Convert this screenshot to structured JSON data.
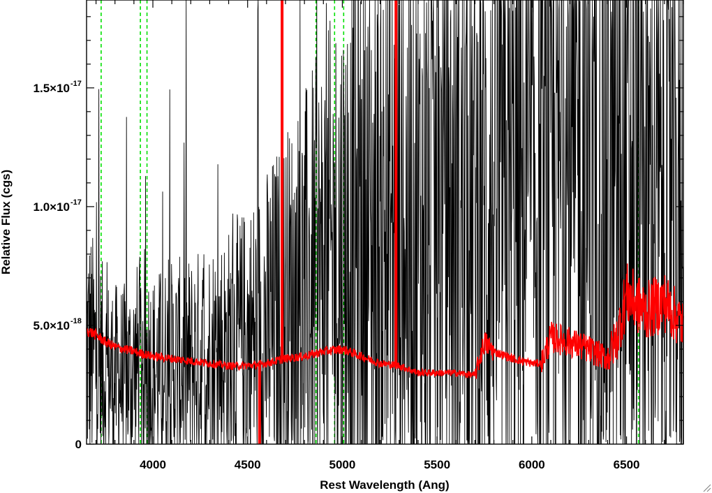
{
  "chart_data": {
    "type": "line",
    "title": "",
    "xlabel": "Rest Wavelength (Ang)",
    "ylabel": "Relative Flux (cgs)",
    "xlim": [
      3650,
      6800
    ],
    "ylim": [
      0,
      1.87e-17
    ],
    "x_ticks": [
      {
        "value": 4000,
        "label": "4000"
      },
      {
        "value": 4500,
        "label": "4500"
      },
      {
        "value": 5000,
        "label": "5000"
      },
      {
        "value": 5500,
        "label": "5500"
      },
      {
        "value": 6000,
        "label": "6000"
      },
      {
        "value": 6500,
        "label": "6500"
      }
    ],
    "y_ticks": [
      {
        "value": 0,
        "mantissa": "0",
        "exponent": ""
      },
      {
        "value": 5e-18,
        "mantissa": "5.0×10",
        "exponent": "-18"
      },
      {
        "value": 1e-17,
        "mantissa": "1.0×10",
        "exponent": "-17"
      },
      {
        "value": 1.5e-17,
        "mantissa": "1.5×10",
        "exponent": "-17"
      }
    ],
    "x_minor_step": 100,
    "y_minor_step": 1e-18,
    "grid": false,
    "legend": "none",
    "line_markers": [
      3727,
      3934,
      3969,
      4861,
      4959,
      5007,
      6563
    ],
    "series": [
      {
        "role": "observed spectrum",
        "color": "#000000",
        "points": [
          [
            3650,
            4e-18
          ],
          [
            3700,
            3.5e-18
          ],
          [
            3750,
            3e-18
          ],
          [
            3800,
            2.8e-18
          ],
          [
            3850,
            2.8e-18
          ],
          [
            3900,
            3e-18
          ],
          [
            3950,
            3.5e-18
          ],
          [
            4000,
            3e-18
          ],
          [
            4100,
            3.2e-18
          ],
          [
            4200,
            3.3e-18
          ],
          [
            4300,
            3.6e-18
          ],
          [
            4400,
            3.8e-18
          ],
          [
            4500,
            4.2e-18
          ],
          [
            4600,
            4.8e-18
          ],
          [
            4700,
            5.5e-18
          ],
          [
            4800,
            6.2e-18
          ],
          [
            4900,
            7e-18
          ],
          [
            5000,
            8e-18
          ],
          [
            5100,
            8.4e-18
          ],
          [
            5200,
            8.6e-18
          ],
          [
            5300,
            8.7e-18
          ],
          [
            5400,
            8.9e-18
          ],
          [
            5500,
            9e-18
          ],
          [
            5600,
            9.2e-18
          ],
          [
            5700,
            9.3e-18
          ],
          [
            5800,
            9.5e-18
          ],
          [
            5900,
            9.7e-18
          ],
          [
            6000,
            1e-17
          ],
          [
            6100,
            1.05e-17
          ],
          [
            6200,
            1.1e-17
          ],
          [
            6300,
            1.1e-17
          ],
          [
            6400,
            1.08e-17
          ],
          [
            6500,
            1.05e-17
          ],
          [
            6600,
            1e-17
          ],
          [
            6700,
            9.5e-18
          ],
          [
            6800,
            9e-18
          ]
        ],
        "noise_fraction": 0.9
      },
      {
        "role": "model / smoothed spectrum",
        "color": "#ff0000",
        "points": [
          [
            3650,
            4.8e-18
          ],
          [
            3700,
            4.6e-18
          ],
          [
            3750,
            4.3e-18
          ],
          [
            3800,
            4.1e-18
          ],
          [
            3900,
            3.9e-18
          ],
          [
            4000,
            3.7e-18
          ],
          [
            4100,
            3.6e-18
          ],
          [
            4200,
            3.5e-18
          ],
          [
            4300,
            3.4e-18
          ],
          [
            4400,
            3.3e-18
          ],
          [
            4500,
            3.3e-18
          ],
          [
            4600,
            3.4e-18
          ],
          [
            4700,
            3.6e-18
          ],
          [
            4800,
            3.7e-18
          ],
          [
            4900,
            3.9e-18
          ],
          [
            5000,
            4e-18
          ],
          [
            5100,
            3.7e-18
          ],
          [
            5200,
            3.4e-18
          ],
          [
            5300,
            3.3e-18
          ],
          [
            5400,
            3e-18
          ],
          [
            5500,
            3e-18
          ],
          [
            5600,
            3e-18
          ],
          [
            5700,
            2.9e-18
          ],
          [
            5750,
            4.3e-18
          ],
          [
            5800,
            3.9e-18
          ],
          [
            5900,
            3.6e-18
          ],
          [
            6000,
            3.4e-18
          ],
          [
            6050,
            3.4e-18
          ],
          [
            6100,
            4.5e-18
          ],
          [
            6200,
            4.3e-18
          ],
          [
            6300,
            4e-18
          ],
          [
            6400,
            3.6e-18
          ],
          [
            6450,
            4.5e-18
          ],
          [
            6500,
            6.3e-18
          ],
          [
            6600,
            5.6e-18
          ],
          [
            6700,
            6e-18
          ],
          [
            6800,
            5e-18
          ]
        ],
        "spikes": [
          {
            "x": 4563,
            "y": 0
          },
          {
            "x": 4682,
            "y": 1.87e-17
          },
          {
            "x": 5283,
            "y": 1.87e-17
          }
        ]
      }
    ]
  }
}
